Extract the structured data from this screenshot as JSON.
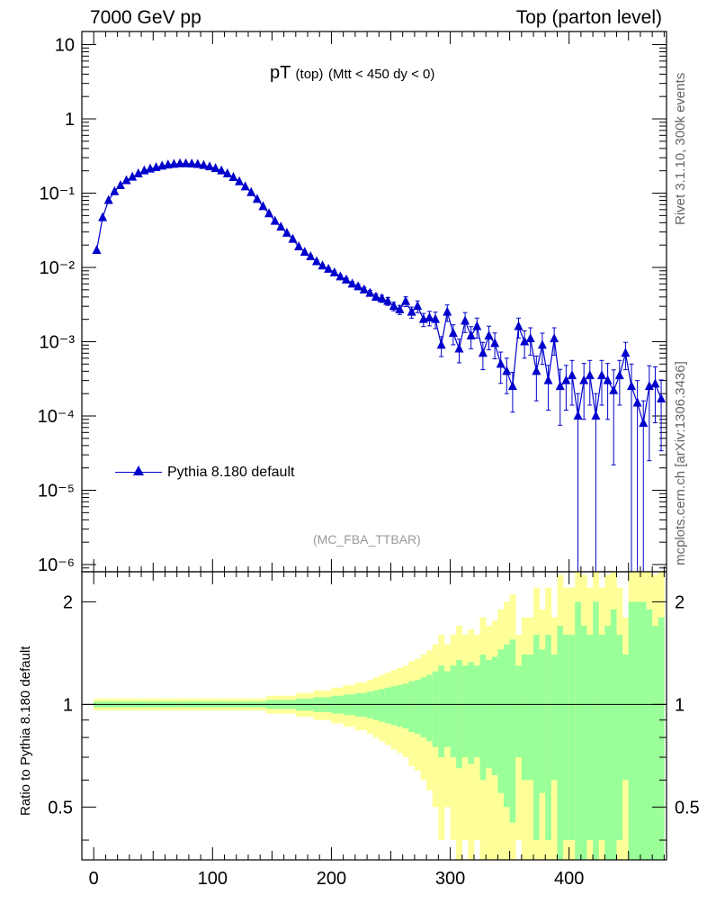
{
  "header": {
    "left": "7000 GeV pp",
    "right": "Top (parton level)"
  },
  "side_labels": {
    "rivet": "Rivet 3.1.10,  300k events",
    "mcplots": "mcplots.cern.ch [arXiv:1306.3436]"
  },
  "plot": {
    "title_main": "pT",
    "title_sub": "(top)",
    "title_cut": "(Mtt < 450 dy < 0)",
    "analysis": "(MC_FBA_TTBAR)",
    "legend_label": "Pythia 8.180 default",
    "ratio_ylabel": "Ratio to Pythia 8.180 default"
  },
  "colors": {
    "series": "#0000cc",
    "band_inner": "#99ff99",
    "band_outer": "#ffff99",
    "axis": "#000000"
  },
  "chart_data": [
    {
      "type": "line",
      "panel": "main",
      "yscale": "log",
      "xlim": [
        -10,
        482
      ],
      "ylim": [
        8e-07,
        15
      ],
      "yticks": [
        {
          "v": 10,
          "t": "10"
        },
        {
          "v": 1,
          "t": "1"
        },
        {
          "v": 0.1,
          "t": "10⁻¹"
        },
        {
          "v": 0.01,
          "t": "10⁻²"
        },
        {
          "v": 0.001,
          "t": "10⁻³"
        },
        {
          "v": 0.0001,
          "t": "10⁻⁴"
        },
        {
          "v": 1e-05,
          "t": "10⁻⁵"
        },
        {
          "v": 1e-06,
          "t": "10⁻⁶"
        }
      ],
      "series": [
        {
          "name": "Pythia 8.180 default",
          "x": [
            2.5,
            7.5,
            12.5,
            17.5,
            22.5,
            27.5,
            32.5,
            37.5,
            42.5,
            47.5,
            52.5,
            57.5,
            62.5,
            67.5,
            72.5,
            77.5,
            82.5,
            87.5,
            92.5,
            97.5,
            102.5,
            107.5,
            112.5,
            117.5,
            122.5,
            127.5,
            132.5,
            137.5,
            142.5,
            147.5,
            152.5,
            157.5,
            162.5,
            167.5,
            172.5,
            177.5,
            182.5,
            187.5,
            192.5,
            197.5,
            202.5,
            207.5,
            212.5,
            217.5,
            222.5,
            227.5,
            232.5,
            237.5,
            242.5,
            247.5,
            252.5,
            257.5,
            262.5,
            267.5,
            272.5,
            277.5,
            282.5,
            287.5,
            292.5,
            297.5,
            302.5,
            307.5,
            312.5,
            317.5,
            322.5,
            327.5,
            332.5,
            337.5,
            342.5,
            347.5,
            352.5,
            357.5,
            362.5,
            367.5,
            372.5,
            377.5,
            382.5,
            387.5,
            392.5,
            397.5,
            402.5,
            407.5,
            412.5,
            417.5,
            422.5,
            427.5,
            432.5,
            437.5,
            442.5,
            447.5,
            452.5,
            457.5,
            462.5,
            467.5,
            472.5,
            477.5
          ],
          "y": [
            0.017,
            0.047,
            0.08,
            0.105,
            0.127,
            0.148,
            0.165,
            0.183,
            0.2,
            0.212,
            0.222,
            0.232,
            0.24,
            0.245,
            0.25,
            0.25,
            0.248,
            0.244,
            0.237,
            0.227,
            0.215,
            0.2,
            0.183,
            0.163,
            0.143,
            0.122,
            0.102,
            0.083,
            0.066,
            0.053,
            0.042,
            0.035,
            0.029,
            0.024,
            0.019,
            0.016,
            0.014,
            0.012,
            0.0105,
            0.0095,
            0.0085,
            0.0075,
            0.0068,
            0.006,
            0.0055,
            0.005,
            0.0045,
            0.004,
            0.0038,
            0.0035,
            0.003,
            0.0027,
            0.0035,
            0.0025,
            0.003,
            0.002,
            0.0021,
            0.002,
            0.0009,
            0.0025,
            0.0013,
            0.0008,
            0.0019,
            0.0012,
            0.0016,
            0.0007,
            0.0012,
            0.00095,
            0.0005,
            0.0004,
            0.00025,
            0.0016,
            0.001,
            0.0011,
            0.0004,
            0.0009,
            0.0003,
            0.0011,
            0.00025,
            0.0003,
            0.00035,
            0.0001,
            0.0003,
            0.00035,
            0.0001,
            0.00035,
            0.0003,
            0.00022,
            0.00035,
            0.0007,
            0.00025,
            0.00015,
            8e-05,
            0.00025,
            0.00027,
            0.00017
          ],
          "yerr_rel": [
            0.02,
            0.02,
            0.02,
            0.02,
            0.02,
            0.02,
            0.02,
            0.02,
            0.02,
            0.02,
            0.02,
            0.02,
            0.02,
            0.02,
            0.02,
            0.02,
            0.02,
            0.02,
            0.02,
            0.02,
            0.02,
            0.02,
            0.02,
            0.02,
            0.02,
            0.02,
            0.02,
            0.02,
            0.02,
            0.03,
            0.03,
            0.03,
            0.03,
            0.03,
            0.04,
            0.04,
            0.04,
            0.05,
            0.05,
            0.05,
            0.06,
            0.06,
            0.07,
            0.07,
            0.08,
            0.08,
            0.09,
            0.1,
            0.11,
            0.12,
            0.13,
            0.14,
            0.15,
            0.17,
            0.18,
            0.2,
            0.22,
            0.25,
            0.3,
            0.25,
            0.3,
            0.35,
            0.3,
            0.33,
            0.3,
            0.4,
            0.35,
            0.38,
            0.45,
            0.5,
            0.55,
            0.3,
            0.4,
            0.4,
            0.6,
            0.45,
            0.6,
            0.4,
            0.7,
            0.6,
            0.6,
            1.0,
            0.7,
            0.6,
            1.0,
            0.6,
            0.7,
            0.9,
            0.6,
            0.4,
            1.0,
            1.0,
            1.0,
            0.9,
            0.7,
            0.8
          ]
        }
      ]
    },
    {
      "type": "area",
      "panel": "ratio",
      "yscale": "log",
      "xlabel": "",
      "ylabel": "Ratio to Pythia 8.180 default",
      "xlim": [
        -10,
        482
      ],
      "ylim": [
        0.35,
        2.45
      ],
      "xticks": [
        0,
        100,
        200,
        300,
        400
      ],
      "yticks": [
        {
          "v": 0.5,
          "t": "0.5"
        },
        {
          "v": 1,
          "t": "1"
        },
        {
          "v": 2,
          "t": "2"
        }
      ],
      "reference": 1,
      "bands": [
        "1-sigma MC stat. (green)",
        "2-sigma MC stat. (yellow)"
      ]
    }
  ]
}
